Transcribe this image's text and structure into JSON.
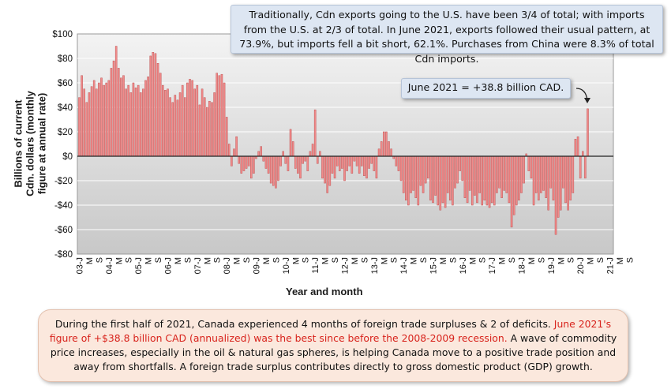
{
  "chart_data": {
    "type": "bar",
    "xlabel": "Year and month",
    "ylabel_lines": [
      "Billions of current",
      "Cdn. dollars (monthly",
      "figure at annual rate)"
    ],
    "ylim": [
      -80,
      100
    ],
    "yticks": [
      100,
      80,
      60,
      40,
      20,
      0,
      -20,
      -40,
      -60,
      -80
    ],
    "ytick_labels": [
      "$100",
      "$80",
      "$60",
      "$40",
      "$20",
      "$0",
      "-$20",
      "-$40",
      "-$60",
      "-$80"
    ],
    "tick_labels": [
      "03-J",
      "M",
      "S",
      "04-J",
      "M",
      "S",
      "05-J",
      "M",
      "S",
      "06-J",
      "M",
      "S",
      "07-J",
      "M",
      "S",
      "08-J",
      "M",
      "S",
      "09-J",
      "M",
      "S",
      "10-J",
      "M",
      "S",
      "11-J",
      "M",
      "S",
      "12-J",
      "M",
      "S",
      "13-J",
      "M",
      "S",
      "14-J",
      "M",
      "S",
      "15-J",
      "M",
      "S",
      "16-J",
      "M",
      "S",
      "17-J",
      "M",
      "S",
      "18-J",
      "M",
      "S",
      "19-J",
      "M",
      "S",
      "20-J",
      "M",
      "S",
      "21-J",
      "M",
      "S"
    ],
    "series": [
      {
        "values": [
          48,
          66,
          55,
          44,
          52,
          57,
          62,
          55,
          60,
          64,
          58,
          60,
          62,
          72,
          78,
          90,
          72,
          64,
          66,
          55,
          58,
          52,
          60,
          56,
          58,
          52,
          55,
          62,
          65,
          82,
          85,
          84,
          76,
          68,
          58,
          54,
          55,
          48,
          44,
          50,
          46,
          52,
          58,
          48,
          60,
          63,
          62,
          55,
          58,
          42,
          55,
          48,
          40,
          45,
          44,
          52,
          68,
          66,
          67,
          60,
          32,
          10,
          -8,
          6,
          16,
          -6,
          -14,
          -12,
          -10,
          -8,
          -18,
          -14,
          -2,
          4,
          8,
          -4,
          -10,
          -14,
          -22,
          -24,
          -26,
          -20,
          -8,
          4,
          -6,
          -12,
          22,
          12,
          -10,
          -14,
          -18,
          -6,
          -4,
          -12,
          4,
          10,
          38,
          -6,
          4,
          -18,
          -22,
          -30,
          -24,
          -14,
          -18,
          -8,
          -12,
          -10,
          -20,
          -12,
          -8,
          -14,
          -4,
          -8,
          -14,
          -8,
          -16,
          -18,
          -10,
          -6,
          -12,
          -18,
          6,
          12,
          20,
          20,
          12,
          6,
          -2,
          -8,
          -12,
          -20,
          -30,
          -36,
          -40,
          -30,
          -28,
          -34,
          -40,
          -24,
          -30,
          -22,
          -18,
          -36,
          -38,
          -32,
          -40,
          -44,
          -38,
          -42,
          -30,
          -36,
          -40,
          -26,
          -22,
          -12,
          -20,
          -34,
          -38,
          -28,
          -40,
          -32,
          -38,
          -30,
          -40,
          -36,
          -40,
          -42,
          -38,
          -40,
          -30,
          -26,
          -34,
          -28,
          -30,
          -38,
          -58,
          -48,
          -40,
          -36,
          -30,
          -22,
          2,
          -12,
          -18,
          -40,
          -30,
          -36,
          -30,
          -28,
          -34,
          -44,
          -26,
          -36,
          -64,
          -50,
          -44,
          -26,
          -38,
          -44,
          -36,
          -30,
          14,
          16,
          -18,
          4,
          -18,
          38.8
        ]
      }
    ]
  },
  "callout_top": "Traditionally, Cdn exports going to the U.S. have been 3/4 of total; with imports from the U.S. at 2/3 of total. In June 2021, exports followed their usual pattern, at 73.9%,  but imports fell a bit short, 62.1%. Purchases from China were 8.3% of total Cdn imports.",
  "callout_june": "June 2021 = +38.8 billion CAD.",
  "bottom_note": {
    "part1": "During the first half of 2021, Canada experienced 4 months of foreign trade surpluses & 2 of deficits. ",
    "highlight": "June 2021's figure of +$38.8 billion CAD (annualized) was the best since before the 2008-2009 recession.",
    "part2": " A wave of commodity price increases, especially in the oil & natural gas spheres, is helping Canada move to a positive trade position and away from shortfalls. A foreign trade surplus contributes directly to gross domestic product (GDP) growth."
  },
  "colors": {
    "bar_fill": "#f08a8a",
    "bar_stroke": "#b84848",
    "plot_bg_top": "#f1f1f1",
    "plot_bg_bottom": "#c9c9c9",
    "callout_bg": "#dde6f2",
    "note_bg": "#fbe8dd",
    "highlight_text": "#d8231c"
  }
}
